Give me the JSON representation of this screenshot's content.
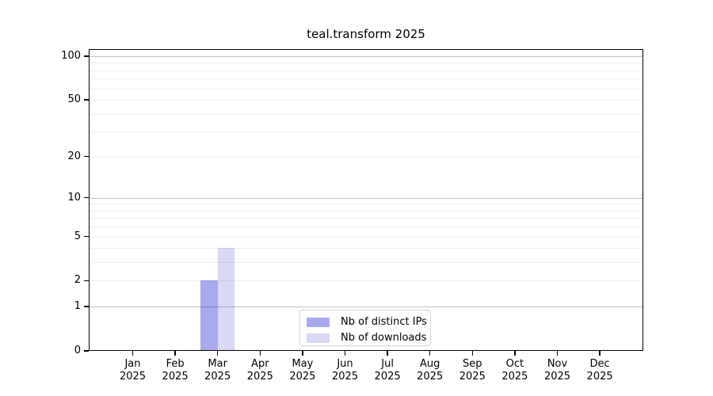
{
  "chart_data": {
    "type": "bar",
    "title": "teal.transform 2025",
    "categories": [
      "Jan",
      "Feb",
      "Mar",
      "Apr",
      "May",
      "Jun",
      "Jul",
      "Aug",
      "Sep",
      "Oct",
      "Nov",
      "Dec"
    ],
    "year_label": "2025",
    "series": [
      {
        "name": "Nb of distinct IPs",
        "color": "#a9a9ef",
        "values": [
          0,
          0,
          2,
          0,
          0,
          0,
          0,
          0,
          0,
          0,
          0,
          0
        ]
      },
      {
        "name": "Nb of downloads",
        "color": "#d9d9f6",
        "values": [
          0,
          0,
          4,
          0,
          0,
          0,
          0,
          0,
          0,
          0,
          0,
          0
        ]
      }
    ],
    "y_axis": {
      "scale": "log1p",
      "ticks": [
        0,
        1,
        2,
        5,
        10,
        20,
        50,
        100
      ],
      "major_gridlines": [
        1,
        10,
        100
      ],
      "minor_gridlines": [
        2,
        3,
        4,
        5,
        6,
        7,
        8,
        9,
        20,
        30,
        40,
        50,
        60,
        70,
        80,
        90
      ],
      "ylim": [
        0,
        112
      ]
    },
    "legend": {
      "position": "bottom-center"
    },
    "colors": {
      "axis": "#000000",
      "major_grid": "rgba(0,0,0,0.24)",
      "minor_grid": "rgba(0,0,0,0.07)"
    },
    "grid": true
  }
}
